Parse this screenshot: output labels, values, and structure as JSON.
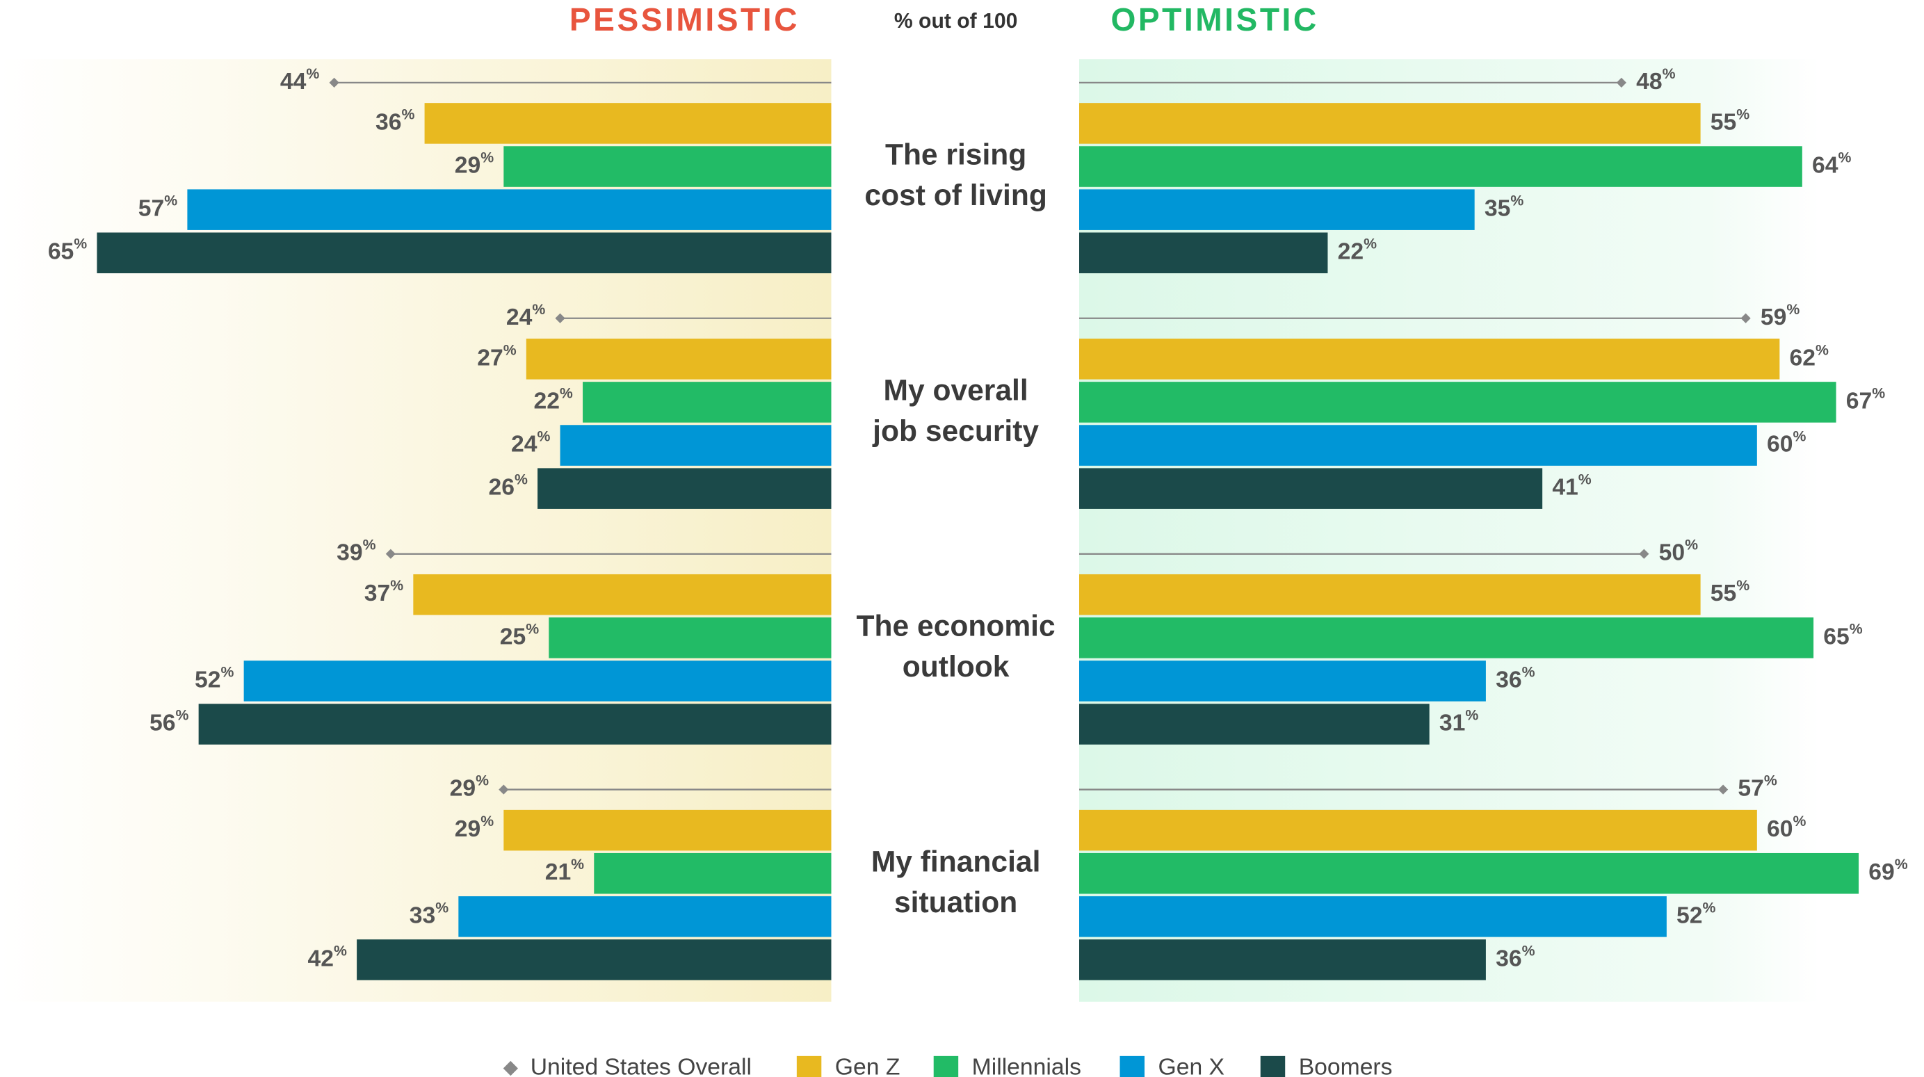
{
  "chart_data": {
    "type": "diverging_bar",
    "left_title": "PESSIMISTIC",
    "right_title": "OPTIMISTIC",
    "subtitle": "% out of 100",
    "unit": "%",
    "left_color": "#e8553e",
    "right_color": "#22b863",
    "categories": [
      [
        "The rising",
        "cost of living"
      ],
      [
        "My overall",
        "job security"
      ],
      [
        "The economic",
        "outlook"
      ],
      [
        "My financial",
        "situation"
      ]
    ],
    "series": [
      {
        "name": "United States Overall",
        "color": "#888888",
        "marker": "diamond",
        "pessimistic": [
          44,
          24,
          39,
          29
        ],
        "optimistic": [
          48,
          59,
          50,
          57
        ]
      },
      {
        "name": "Gen Z",
        "color": "#e8b920",
        "marker": "bar",
        "pessimistic": [
          36,
          27,
          37,
          29
        ],
        "optimistic": [
          55,
          62,
          55,
          60
        ]
      },
      {
        "name": "Millennials",
        "color": "#22bb66",
        "marker": "bar",
        "pessimistic": [
          29,
          22,
          25,
          21
        ],
        "optimistic": [
          64,
          67,
          65,
          69
        ]
      },
      {
        "name": "Gen X",
        "color": "#0096d6",
        "marker": "bar",
        "pessimistic": [
          57,
          24,
          52,
          33
        ],
        "optimistic": [
          35,
          60,
          36,
          52
        ]
      },
      {
        "name": "Boomers",
        "color": "#1b4a4a",
        "marker": "bar",
        "pessimistic": [
          65,
          26,
          56,
          42
        ],
        "optimistic": [
          22,
          41,
          31,
          36
        ]
      }
    ]
  }
}
